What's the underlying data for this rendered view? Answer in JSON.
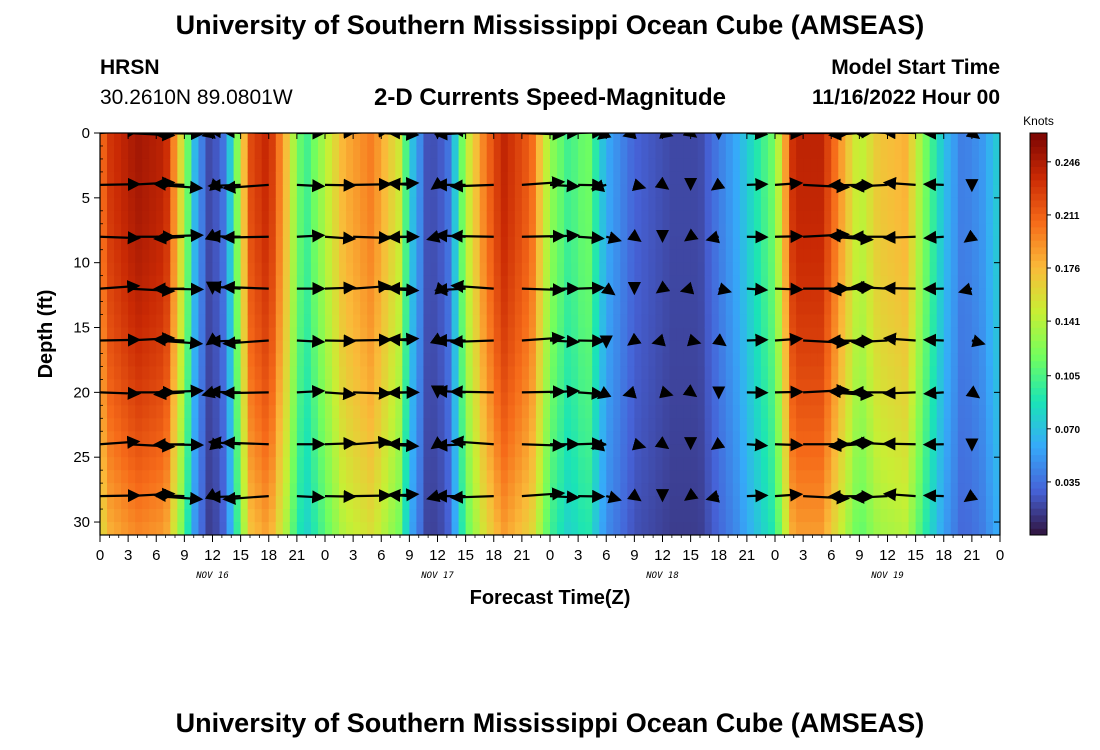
{
  "titles": {
    "main": "University of Southern Mississippi Ocean Cube (AMSEAS)",
    "repeat": "University of Southern Mississippi Ocean Cube (AMSEAS)"
  },
  "station": {
    "name": "HRSN",
    "coords": "30.2610N  89.0801W"
  },
  "model": {
    "label": "Model Start Time",
    "value": "11/16/2022 Hour 00"
  },
  "chart_data": {
    "type": "heatmap",
    "title": "2-D Currents Speed-Magnitude",
    "xlabel": "Forecast Time(Z)",
    "ylabel": "Depth (ft)",
    "x_ticks": [
      "0",
      "3",
      "6",
      "9",
      "12",
      "15",
      "18",
      "21",
      "0",
      "3",
      "6",
      "9",
      "12",
      "15",
      "18",
      "21",
      "0",
      "3",
      "6",
      "9",
      "12",
      "15",
      "18",
      "21",
      "0",
      "3",
      "6",
      "9",
      "12",
      "15",
      "18",
      "21",
      "0"
    ],
    "x_range_hours": [
      0,
      96
    ],
    "y_ticks": [
      0,
      5,
      10,
      15,
      20,
      25,
      30
    ],
    "y_range_ft": [
      0,
      31
    ],
    "day_labels": [
      {
        "text": "NOV 16",
        "hour": 12
      },
      {
        "text": "NOV 17",
        "hour": 36
      },
      {
        "text": "NOV 18",
        "hour": 60
      },
      {
        "text": "NOV 19",
        "hour": 84
      }
    ],
    "colorbar": {
      "unit": "Knots",
      "min": 0.0,
      "max": 0.265,
      "ticks": [
        "0.246",
        "0.211",
        "0.176",
        "0.141",
        "0.105",
        "0.070",
        "0.035"
      ],
      "tick_values": [
        0.246,
        0.211,
        0.176,
        0.141,
        0.105,
        0.07,
        0.035
      ],
      "colors": [
        "#30123b",
        "#4662d7",
        "#36aaf9",
        "#1ae4b6",
        "#72fe5e",
        "#c8ef34",
        "#faba39",
        "#f66b19",
        "#ca2a04",
        "#7a0403"
      ]
    },
    "speed_profile_knots": [
      {
        "hour": 0,
        "speed": 0.2
      },
      {
        "hour": 1,
        "speed": 0.23
      },
      {
        "hour": 4,
        "speed": 0.25
      },
      {
        "hour": 7,
        "speed": 0.24
      },
      {
        "hour": 9,
        "speed": 0.14
      },
      {
        "hour": 10,
        "speed": 0.07
      },
      {
        "hour": 11.5,
        "speed": 0.02
      },
      {
        "hour": 13,
        "speed": 0.03
      },
      {
        "hour": 14,
        "speed": 0.08
      },
      {
        "hour": 15,
        "speed": 0.15
      },
      {
        "hour": 16,
        "speed": 0.22
      },
      {
        "hour": 18,
        "speed": 0.24
      },
      {
        "hour": 20,
        "speed": 0.17
      },
      {
        "hour": 21,
        "speed": 0.12
      },
      {
        "hour": 22,
        "speed": 0.1
      },
      {
        "hour": 24,
        "speed": 0.14
      },
      {
        "hour": 26,
        "speed": 0.18
      },
      {
        "hour": 29,
        "speed": 0.2
      },
      {
        "hour": 32,
        "speed": 0.15
      },
      {
        "hour": 33,
        "speed": 0.08
      },
      {
        "hour": 35,
        "speed": 0.02
      },
      {
        "hour": 37,
        "speed": 0.03
      },
      {
        "hour": 38,
        "speed": 0.08
      },
      {
        "hour": 39,
        "speed": 0.14
      },
      {
        "hour": 41,
        "speed": 0.2
      },
      {
        "hour": 43,
        "speed": 0.24
      },
      {
        "hour": 46,
        "speed": 0.21
      },
      {
        "hour": 48,
        "speed": 0.13
      },
      {
        "hour": 50,
        "speed": 0.1
      },
      {
        "hour": 52,
        "speed": 0.12
      },
      {
        "hour": 54,
        "speed": 0.06
      },
      {
        "hour": 57,
        "speed": 0.03
      },
      {
        "hour": 61,
        "speed": 0.02
      },
      {
        "hour": 64,
        "speed": 0.02
      },
      {
        "hour": 66,
        "speed": 0.04
      },
      {
        "hour": 68,
        "speed": 0.06
      },
      {
        "hour": 70,
        "speed": 0.09
      },
      {
        "hour": 72,
        "speed": 0.12
      },
      {
        "hour": 73,
        "speed": 0.18
      },
      {
        "hour": 74,
        "speed": 0.24
      },
      {
        "hour": 77,
        "speed": 0.24
      },
      {
        "hour": 79,
        "speed": 0.19
      },
      {
        "hour": 81,
        "speed": 0.14
      },
      {
        "hour": 83,
        "speed": 0.17
      },
      {
        "hour": 86,
        "speed": 0.18
      },
      {
        "hour": 88,
        "speed": 0.12
      },
      {
        "hour": 90,
        "speed": 0.07
      },
      {
        "hour": 92,
        "speed": 0.04
      },
      {
        "hour": 94,
        "speed": 0.05
      },
      {
        "hour": 96,
        "speed": 0.08
      }
    ],
    "vector_depths_ft": [
      0,
      4,
      8,
      12,
      16,
      20,
      24,
      28
    ],
    "vector_hours": [
      0,
      3,
      6,
      9,
      12,
      15,
      18,
      21,
      24,
      27,
      30,
      33,
      36,
      39,
      42,
      45,
      48,
      51,
      54,
      57,
      60,
      63,
      66,
      69,
      72,
      75,
      78,
      81,
      84,
      87,
      90,
      93,
      96
    ]
  }
}
